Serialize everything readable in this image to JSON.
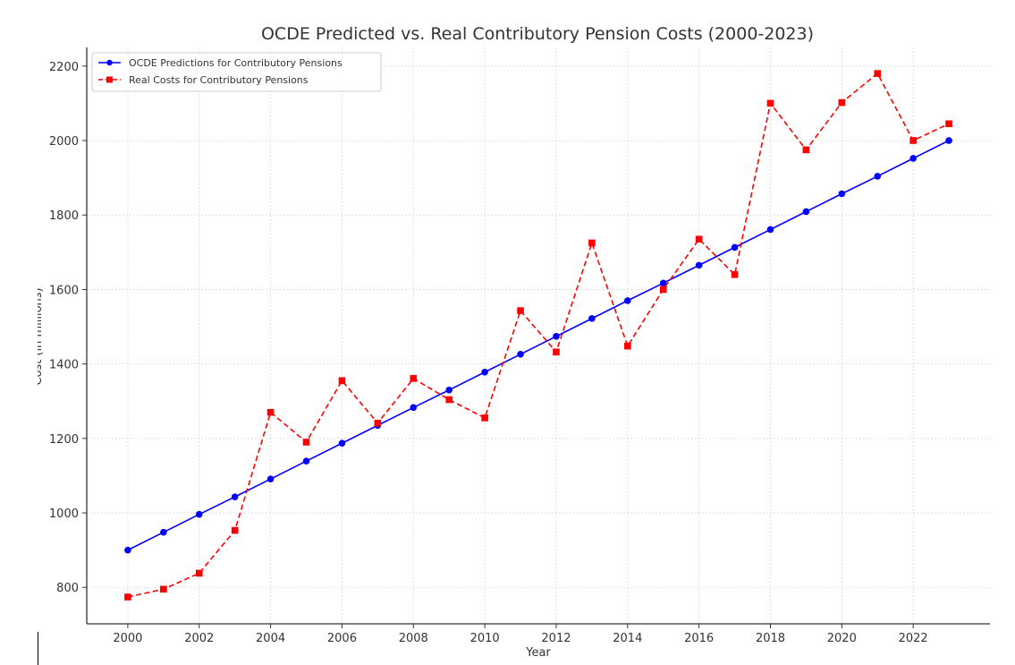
{
  "chart_data": {
    "type": "line",
    "title": "OCDE Predicted vs. Real Contributory Pension Costs (2000-2023)",
    "xlabel": "Year",
    "ylabel": "Cost (in millions)",
    "x": [
      2000,
      2001,
      2002,
      2003,
      2004,
      2005,
      2006,
      2007,
      2008,
      2009,
      2010,
      2011,
      2012,
      2013,
      2014,
      2015,
      2016,
      2017,
      2018,
      2019,
      2020,
      2021,
      2022,
      2023
    ],
    "xlim": [
      1998.85,
      2024.15
    ],
    "ylim": [
      702,
      2250
    ],
    "xticks": [
      2000,
      2002,
      2004,
      2006,
      2008,
      2010,
      2012,
      2014,
      2016,
      2018,
      2020,
      2022
    ],
    "yticks": [
      800,
      1000,
      1200,
      1400,
      1600,
      1800,
      2000,
      2200
    ],
    "grid": true,
    "legend_position": "top-left",
    "series": [
      {
        "name": "OCDE Predictions for Contributory Pensions",
        "color": "#0000ff",
        "linestyle": "solid",
        "marker": "circle",
        "values": [
          900,
          948,
          996,
          1043,
          1091,
          1139,
          1187,
          1235,
          1283,
          1330,
          1378,
          1426,
          1474,
          1522,
          1570,
          1617,
          1665,
          1713,
          1761,
          1809,
          1857,
          1904,
          1952,
          2000
        ]
      },
      {
        "name": "Real Costs for Contributory Pensions",
        "color": "#ff0000",
        "linestyle": "dashed",
        "marker": "square",
        "values": [
          774,
          795,
          838,
          953,
          1270,
          1190,
          1355,
          1241,
          1361,
          1304,
          1255,
          1543,
          1432,
          1725,
          1448,
          1600,
          1735,
          1640,
          2100,
          1975,
          2102,
          2180,
          2000,
          2045
        ]
      }
    ]
  }
}
